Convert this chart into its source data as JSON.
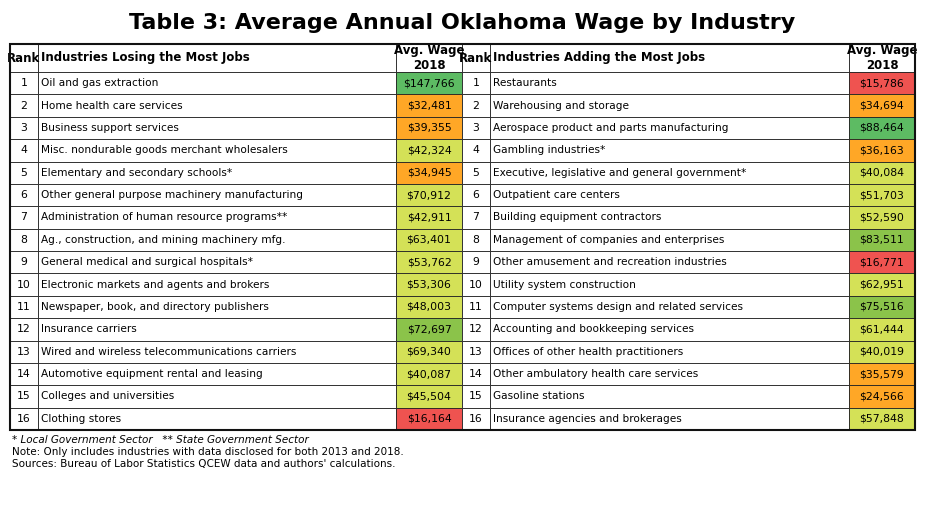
{
  "title": "Table 3: Average Annual Oklahoma Wage by Industry",
  "left_rows": [
    [
      1,
      "Oil and gas extraction",
      "$147,766",
      "green"
    ],
    [
      2,
      "Home health care services",
      "$32,481",
      "orange"
    ],
    [
      3,
      "Business support services",
      "$39,355",
      "orange"
    ],
    [
      4,
      "Misc. nondurable goods merchant wholesalers",
      "$42,324",
      "yellow"
    ],
    [
      5,
      "Elementary and secondary schools*",
      "$34,945",
      "orange"
    ],
    [
      6,
      "Other general purpose machinery manufacturing",
      "$70,912",
      "yellow"
    ],
    [
      7,
      "Administration of human resource programs**",
      "$42,911",
      "yellow"
    ],
    [
      8,
      "Ag., construction, and mining machinery mfg.",
      "$63,401",
      "yellow"
    ],
    [
      9,
      "General medical and surgical hospitals*",
      "$53,762",
      "yellow"
    ],
    [
      10,
      "Electronic markets and agents and brokers",
      "$53,306",
      "yellow"
    ],
    [
      11,
      "Newspaper, book, and directory publishers",
      "$48,003",
      "yellow"
    ],
    [
      12,
      "Insurance carriers",
      "$72,697",
      "lightgreen"
    ],
    [
      13,
      "Wired and wireless telecommunications carriers",
      "$69,340",
      "yellow"
    ],
    [
      14,
      "Automotive equipment rental and leasing",
      "$40,087",
      "yellow"
    ],
    [
      15,
      "Colleges and universities",
      "$45,504",
      "yellow"
    ],
    [
      16,
      "Clothing stores",
      "$16,164",
      "red"
    ]
  ],
  "right_rows": [
    [
      1,
      "Restaurants",
      "$15,786",
      "red"
    ],
    [
      2,
      "Warehousing and storage",
      "$34,694",
      "orange"
    ],
    [
      3,
      "Aerospace product and parts manufacturing",
      "$88,464",
      "green"
    ],
    [
      4,
      "Gambling industries*",
      "$36,163",
      "orange"
    ],
    [
      5,
      "Executive, legislative and general government*",
      "$40,084",
      "yellow"
    ],
    [
      6,
      "Outpatient care centers",
      "$51,703",
      "yellow"
    ],
    [
      7,
      "Building equipment contractors",
      "$52,590",
      "yellow"
    ],
    [
      8,
      "Management of companies and enterprises",
      "$83,511",
      "lightgreen"
    ],
    [
      9,
      "Other amusement and recreation industries",
      "$16,771",
      "red"
    ],
    [
      10,
      "Utility system construction",
      "$62,951",
      "yellow"
    ],
    [
      11,
      "Computer systems design and related services",
      "$75,516",
      "lightgreen"
    ],
    [
      12,
      "Accounting and bookkeeping services",
      "$61,444",
      "yellow"
    ],
    [
      13,
      "Offices of other health practitioners",
      "$40,019",
      "yellow"
    ],
    [
      14,
      "Other ambulatory health care services",
      "$35,579",
      "orange"
    ],
    [
      15,
      "Gasoline stations",
      "$24,566",
      "orange"
    ],
    [
      16,
      "Insurance agencies and brokerages",
      "$57,848",
      "yellow"
    ]
  ],
  "footnotes": [
    "* Local Government Sector   ** State Government Sector",
    "Note: Only includes industries with data disclosed for both 2013 and 2018.",
    "Sources: Bureau of Labor Statistics QCEW data and authors' calculations."
  ],
  "color_map": {
    "green": "#5DBB63",
    "lightgreen": "#8BC34A",
    "yellow": "#D4E157",
    "orange": "#FFA726",
    "red": "#EF5350"
  },
  "title_fontsize": 16,
  "header_fontsize": 8.5,
  "cell_fontsize": 7.8,
  "footnote_fontsize": 7.5,
  "fig_width": 9.25,
  "fig_height": 5.2,
  "dpi": 100
}
